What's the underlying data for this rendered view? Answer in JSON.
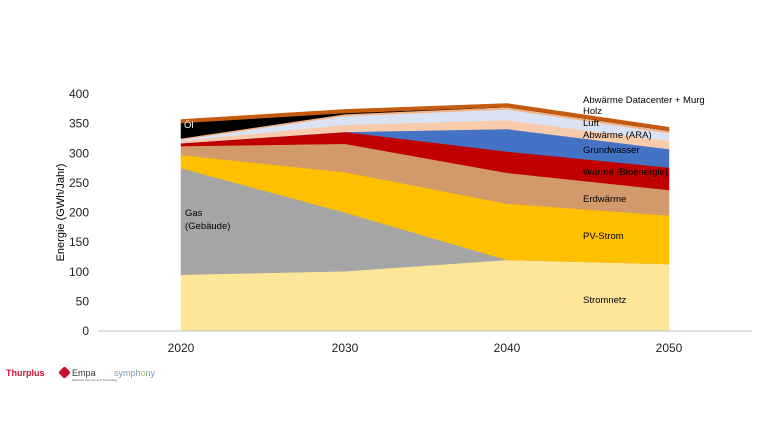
{
  "chart_data": {
    "type": "area",
    "stacked": true,
    "title": "",
    "xlabel": "",
    "ylabel": "Energie (GWh/Jahr)",
    "x": [
      2020,
      2030,
      2040,
      2050
    ],
    "x_tick_labels": [
      "2020",
      "2030",
      "2040",
      "2050"
    ],
    "ylim": [
      0,
      400
    ],
    "y_ticks": [
      0,
      50,
      100,
      150,
      200,
      250,
      300,
      350,
      400
    ],
    "grid": false,
    "series": [
      {
        "name": "Stromnetz",
        "values": [
          95,
          101,
          120,
          113
        ],
        "color": "#FEE699"
      },
      {
        "name": "Gas (Gebäude)",
        "values": [
          180,
          99,
          0,
          0
        ],
        "color": "#A5A5A5"
      },
      {
        "name": "PV-Strom",
        "values": [
          22,
          68,
          95,
          82
        ],
        "color": "#FFC000"
      },
      {
        "name": "Erdwärme",
        "values": [
          15,
          48,
          52,
          43
        ],
        "color": "#D29A6A"
      },
      {
        "name": "Wärme (Bioenergie)",
        "values": [
          5,
          20,
          36,
          38
        ],
        "color": "#C00000"
      },
      {
        "name": "Grundwasser",
        "values": [
          0,
          0,
          38,
          31
        ],
        "color": "#4472C4"
      },
      {
        "name": "Abwärme (ARA)",
        "values": [
          4,
          12,
          15,
          14
        ],
        "color": "#F8CBAD"
      },
      {
        "name": "Luft",
        "values": [
          2,
          15,
          18,
          13
        ],
        "color": "#DAE3F3"
      },
      {
        "name": "Holz",
        "values": [
          2,
          3,
          4,
          4
        ],
        "color": "#F4B183"
      },
      {
        "name": "Öl",
        "values": [
          26,
          2,
          0,
          0
        ],
        "color": "#000000"
      },
      {
        "name": "Abwärme Datacenter + Murg",
        "values": [
          6,
          6,
          6,
          6
        ],
        "color": "#C55A11"
      }
    ],
    "inline_labels": [
      {
        "text": "Öl",
        "series": "Öl"
      },
      {
        "text": "Gas",
        "series": "Gas (Gebäude)"
      },
      {
        "text": "(Gebäude)",
        "series": "Gas (Gebäude)"
      },
      {
        "text": "Abwärme Datacenter + Murg",
        "series": "Abwärme Datacenter + Murg"
      },
      {
        "text": "Holz",
        "series": "Holz"
      },
      {
        "text": "Luft",
        "series": "Luft"
      },
      {
        "text": "Abwärme (ARA)",
        "series": "Abwärme (ARA)"
      },
      {
        "text": "Grundwasser",
        "series": "Grundwasser"
      },
      {
        "text": "Wärme (Bioenergie)",
        "series": "Wärme (Bioenergie)"
      },
      {
        "text": "Erdwärme",
        "series": "Erdwärme"
      },
      {
        "text": "PV-Strom",
        "series": "PV-Strom"
      },
      {
        "text": "Stromnetz",
        "series": "Stromnetz"
      }
    ]
  },
  "logos": {
    "thurplus": "Thurplus",
    "empa": "Empa",
    "empa_subtitle": "Materials Science and Technology",
    "symphony_a": "symph",
    "symphony_b": "o",
    "symphony_c": "ny"
  }
}
